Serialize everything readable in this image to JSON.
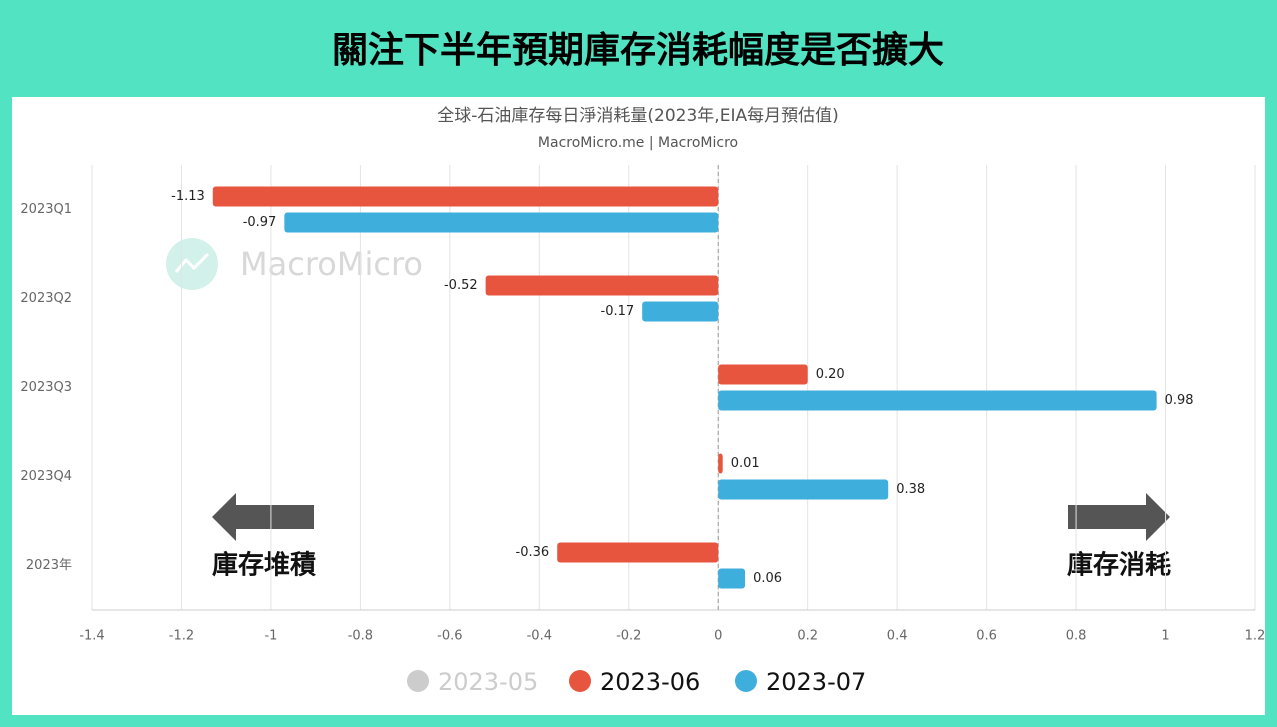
{
  "header": {
    "title": "關注下半年預期庫存消耗幅度是否擴大"
  },
  "chart_data": {
    "type": "bar",
    "orientation": "horizontal",
    "title": "全球-石油庫存每日淨消耗量(2023年,EIA每月預估值)",
    "subtitle": "MacroMicro.me | MacroMicro",
    "watermark": "MacroMicro",
    "annotations": [
      "庫存堆積",
      "庫存消耗"
    ],
    "categories": [
      "2023Q1",
      "2023Q2",
      "2023Q3",
      "2023Q4",
      "2023年"
    ],
    "series": [
      {
        "name": "2023-05",
        "color": "#cccccc",
        "hidden": true,
        "values": [
          null,
          null,
          null,
          null,
          null
        ]
      },
      {
        "name": "2023-06",
        "color": "#e8553e",
        "values": [
          -1.13,
          -0.52,
          0.2,
          0.01,
          -0.36
        ],
        "value_labels": [
          "-1.13",
          "-0.52",
          "0.20",
          "0.01",
          "-0.36"
        ]
      },
      {
        "name": "2023-07",
        "color": "#3eaedc",
        "values": [
          -0.97,
          -0.17,
          0.98,
          0.38,
          0.06
        ],
        "value_labels": [
          "-0.97",
          "-0.17",
          "0.98",
          "0.38",
          "0.06"
        ]
      }
    ],
    "xlim": [
      -1.4,
      1.2
    ],
    "xticks": [
      -1.4,
      -1.2,
      -1,
      -0.8,
      -0.6,
      -0.4,
      -0.2,
      0,
      0.2,
      0.4,
      0.6,
      0.8,
      1,
      1.2
    ],
    "grid": true
  }
}
